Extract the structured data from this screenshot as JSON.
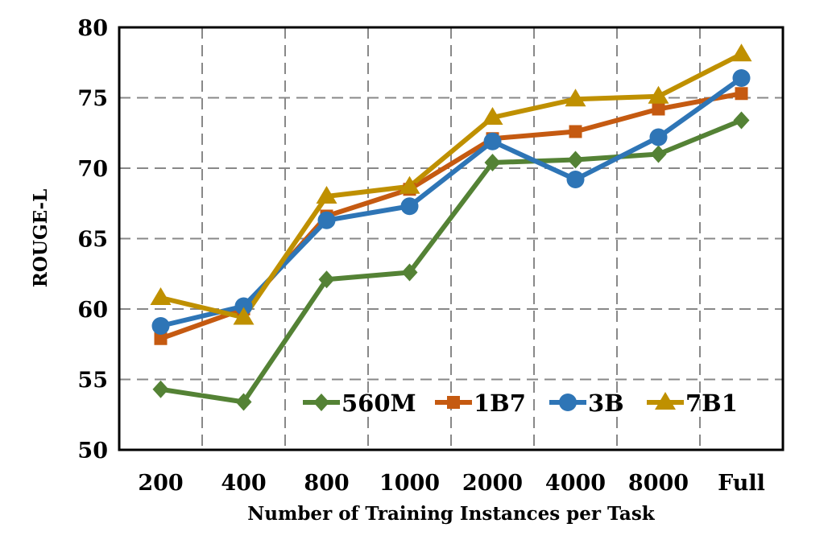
{
  "chart_data": {
    "type": "line",
    "categories": [
      "200",
      "400",
      "800",
      "1000",
      "2000",
      "4000",
      "8000",
      "Full"
    ],
    "xlabel": "Number of Training Instances per Task",
    "ylabel": "ROUGE-L",
    "ylim": [
      50,
      80
    ],
    "yticks": [
      50,
      55,
      60,
      65,
      70,
      75,
      80
    ],
    "grid": true,
    "legend_position": "bottom-right",
    "series": [
      {
        "name": "560M",
        "color": "#548235",
        "marker": "diamond",
        "values": [
          54.3,
          53.4,
          62.1,
          62.6,
          70.4,
          70.6,
          71.0,
          73.4
        ]
      },
      {
        "name": "1B7",
        "color": "#C55A11",
        "marker": "square",
        "values": [
          57.9,
          60.0,
          66.6,
          68.5,
          72.1,
          72.6,
          74.2,
          75.3
        ]
      },
      {
        "name": "3B",
        "color": "#2E75B6",
        "marker": "circle",
        "values": [
          58.8,
          60.2,
          66.3,
          67.3,
          71.9,
          69.2,
          72.2,
          76.4
        ]
      },
      {
        "name": "7B1",
        "color": "#BF9000",
        "marker": "triangle",
        "values": [
          60.8,
          59.4,
          68.0,
          68.7,
          73.6,
          74.9,
          75.1,
          78.1
        ]
      }
    ]
  }
}
